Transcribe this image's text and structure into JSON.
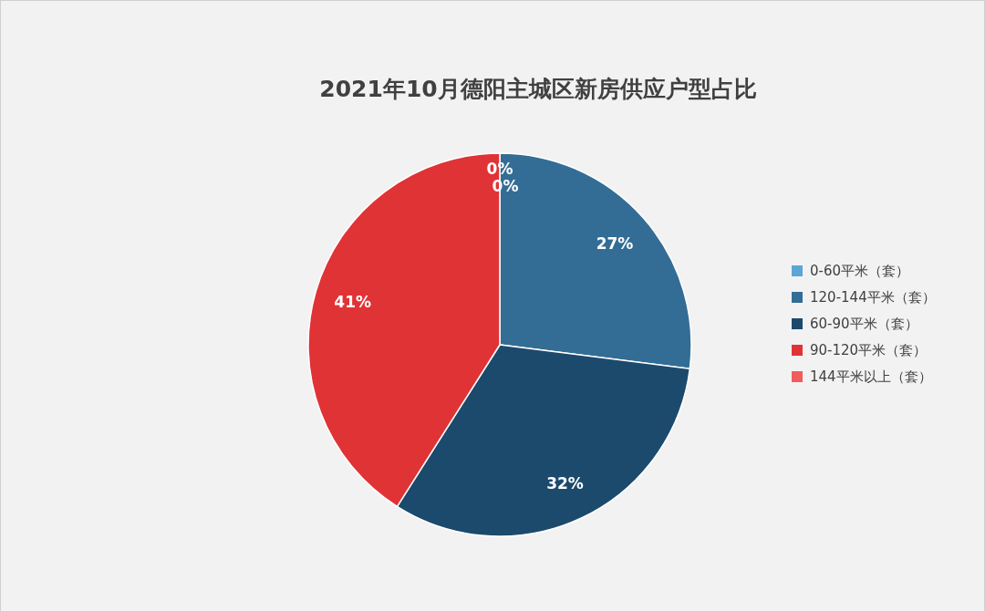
{
  "chart_data": {
    "type": "pie",
    "title": "2021年10月德阳主城区新房供应户型占比",
    "categories": [
      "0-60平米（套）",
      "120-144平米（套）",
      "60-90平米（套）",
      "90-120平米（套）",
      "144平米以上（套）"
    ],
    "values": [
      0,
      27,
      32,
      41,
      0
    ],
    "colors": [
      "#5ba6d4",
      "#336d95",
      "#1c4a6c",
      "#e03336",
      "#f25c5c"
    ],
    "value_labels": [
      "0%",
      "27%",
      "32%",
      "41%",
      "0%"
    ],
    "legend": "right"
  }
}
